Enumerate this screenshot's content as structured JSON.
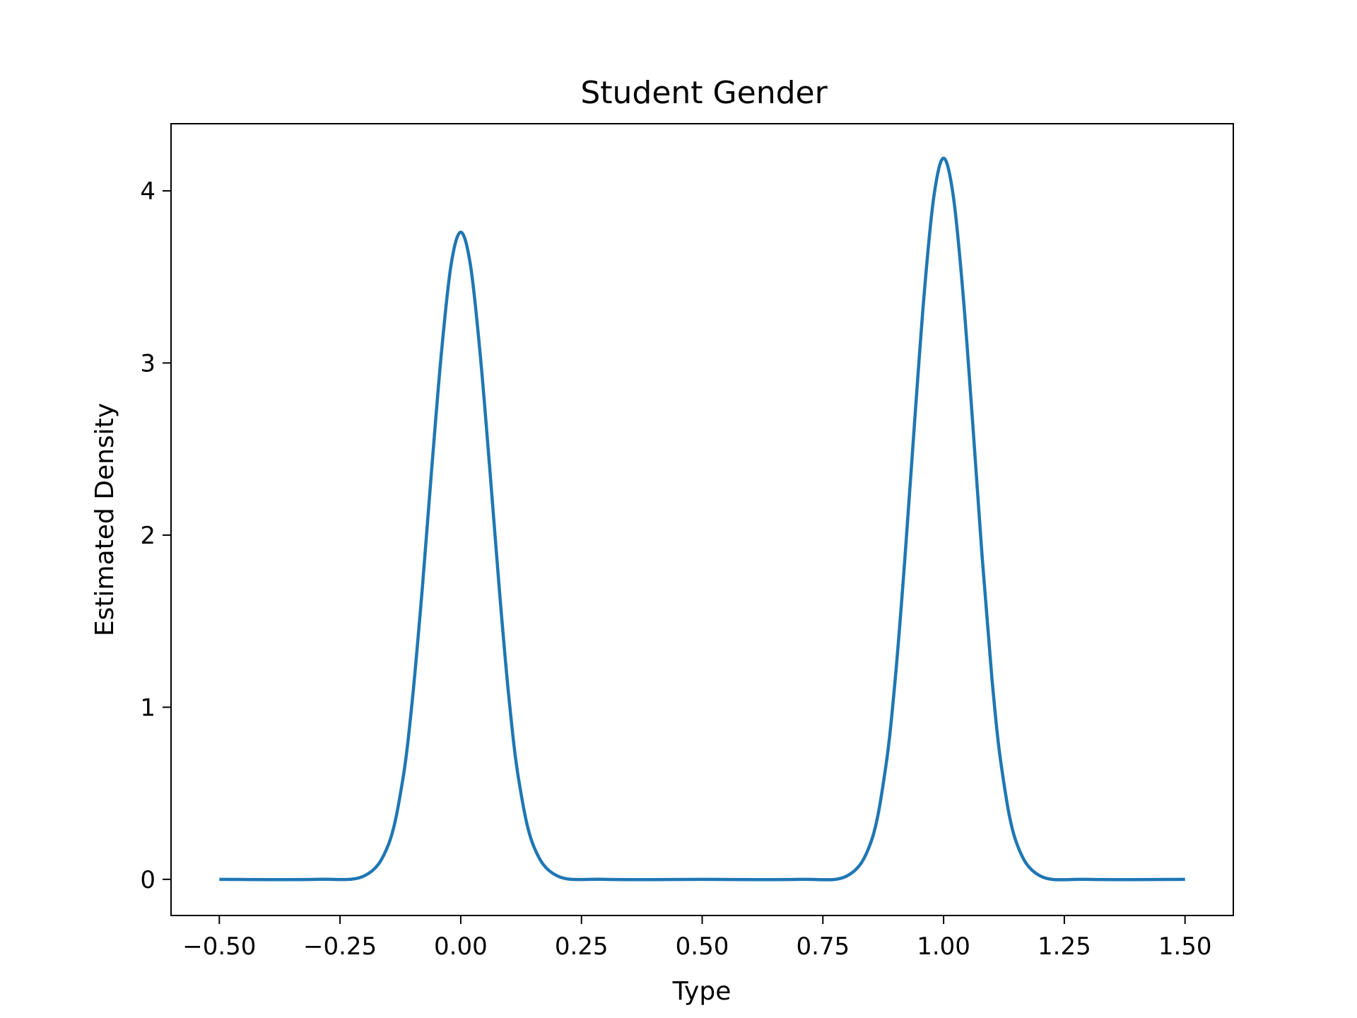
{
  "chart_data": {
    "type": "line",
    "title": "Student Gender",
    "xlabel": "Type",
    "ylabel": "Estimated Density",
    "xlim": [
      -0.6,
      1.6
    ],
    "ylim": [
      -0.21,
      4.39
    ],
    "xticks": [
      -0.5,
      -0.25,
      0.0,
      0.25,
      0.5,
      0.75,
      1.0,
      1.25,
      1.5
    ],
    "xtick_labels": [
      "−0.50",
      "−0.25",
      "0.00",
      "0.25",
      "0.50",
      "0.75",
      "1.00",
      "1.25",
      "1.50"
    ],
    "yticks": [
      0,
      1,
      2,
      3,
      4
    ],
    "ytick_labels": [
      "0",
      "1",
      "2",
      "3",
      "4"
    ],
    "grid": false,
    "series": [
      {
        "color": "#1f77b4",
        "x": [
          -0.5,
          -0.3,
          -0.2,
          -0.15,
          -0.12,
          -0.1,
          -0.08,
          -0.06,
          -0.04,
          -0.02,
          0.0,
          0.02,
          0.04,
          0.06,
          0.08,
          0.1,
          0.12,
          0.15,
          0.2,
          0.3,
          0.5,
          0.7,
          0.8,
          0.85,
          0.88,
          0.9,
          0.92,
          0.94,
          0.96,
          0.98,
          1.0,
          1.02,
          1.04,
          1.06,
          1.08,
          1.1,
          1.12,
          1.15,
          1.2,
          1.3,
          1.5
        ],
        "y": [
          0.0,
          0.0,
          0.02,
          0.2,
          0.58,
          1.05,
          1.68,
          2.39,
          3.06,
          3.57,
          3.76,
          3.57,
          3.06,
          2.39,
          1.68,
          1.05,
          0.58,
          0.2,
          0.02,
          0.0,
          0.0,
          0.0,
          0.02,
          0.22,
          0.65,
          1.17,
          1.87,
          2.66,
          3.41,
          3.97,
          4.19,
          3.97,
          3.41,
          2.66,
          1.87,
          1.17,
          0.65,
          0.22,
          0.02,
          0.0,
          0.0
        ]
      }
    ]
  }
}
